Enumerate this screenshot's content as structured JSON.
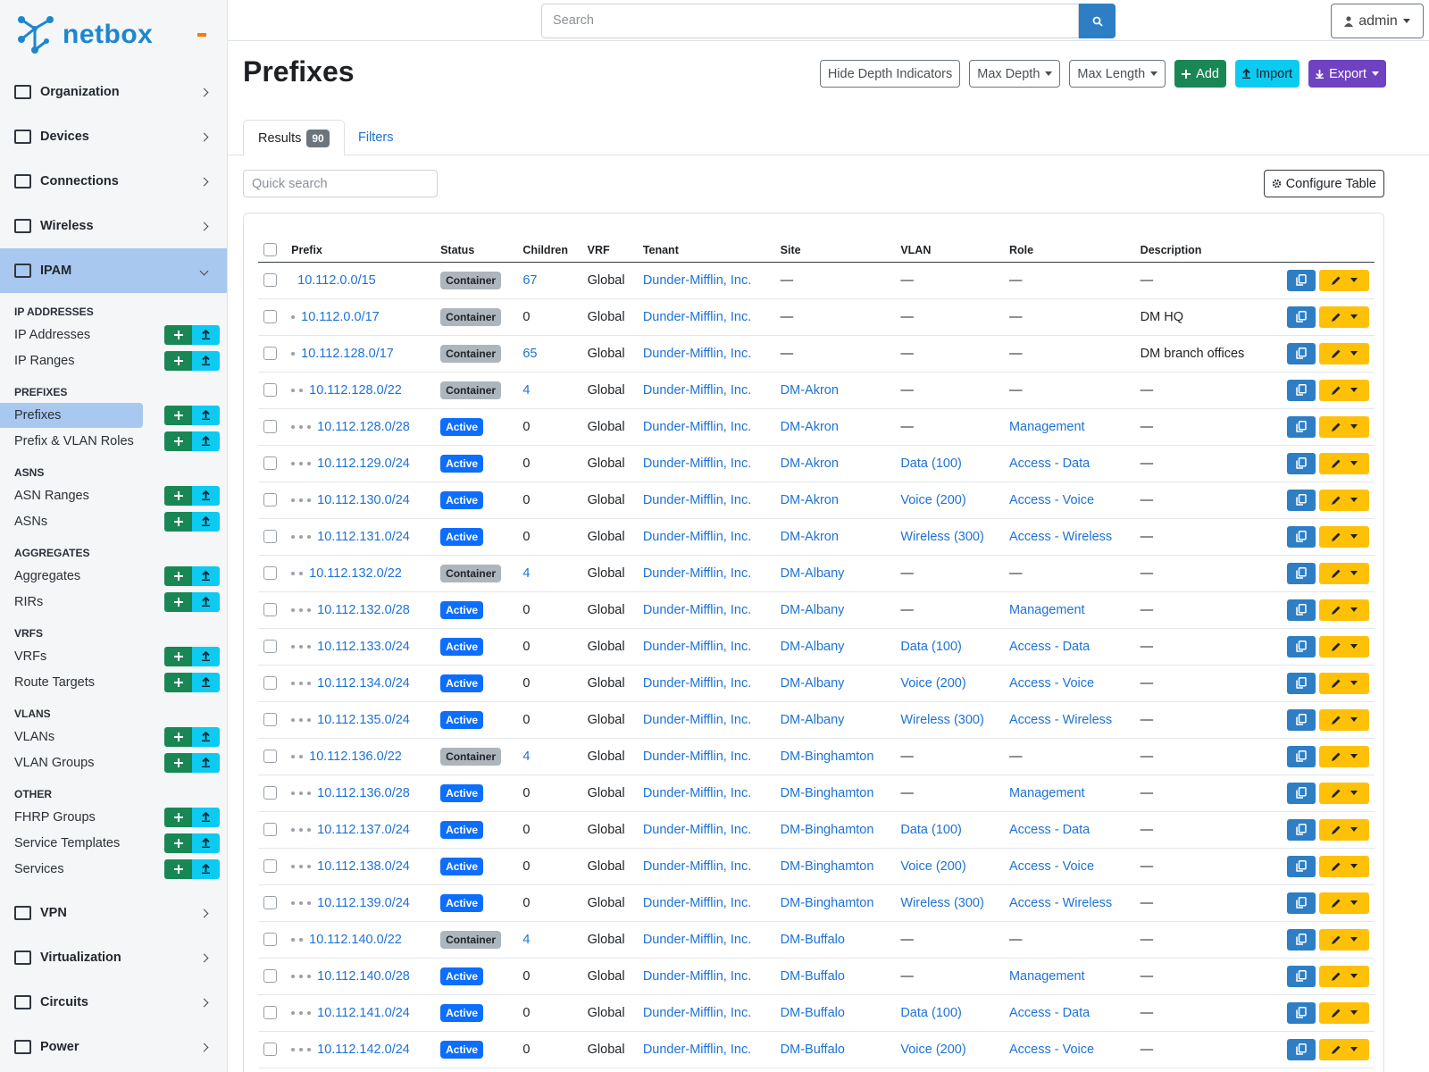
{
  "brand": "netbox",
  "search_placeholder": "Search",
  "user": "admin",
  "nav": {
    "top": [
      "Organization",
      "Devices",
      "Connections",
      "Wireless"
    ],
    "active": "IPAM",
    "groups": [
      {
        "title": "IP ADDRESSES",
        "items": [
          {
            "label": "IP Addresses"
          },
          {
            "label": "IP Ranges"
          }
        ]
      },
      {
        "title": "PREFIXES",
        "items": [
          {
            "label": "Prefixes",
            "selected": true
          },
          {
            "label": "Prefix & VLAN Roles"
          }
        ]
      },
      {
        "title": "ASNS",
        "items": [
          {
            "label": "ASN Ranges"
          },
          {
            "label": "ASNs"
          }
        ]
      },
      {
        "title": "AGGREGATES",
        "items": [
          {
            "label": "Aggregates"
          },
          {
            "label": "RIRs"
          }
        ]
      },
      {
        "title": "VRFS",
        "items": [
          {
            "label": "VRFs"
          },
          {
            "label": "Route Targets"
          }
        ]
      },
      {
        "title": "VLANS",
        "items": [
          {
            "label": "VLANs"
          },
          {
            "label": "VLAN Groups"
          }
        ]
      },
      {
        "title": "OTHER",
        "items": [
          {
            "label": "FHRP Groups"
          },
          {
            "label": "Service Templates"
          },
          {
            "label": "Services"
          }
        ]
      }
    ],
    "bottom": [
      "VPN",
      "Virtualization",
      "Circuits",
      "Power"
    ]
  },
  "page": {
    "title": "Prefixes",
    "actions": [
      "Hide Depth Indicators",
      "Max Depth",
      "Max Length",
      "Add",
      "Import",
      "Export"
    ],
    "tabs": {
      "results": "Results",
      "count": 90,
      "filters": "Filters"
    },
    "quick_search": "Quick search",
    "configure": "Configure Table"
  },
  "table": {
    "columns": [
      "Prefix",
      "Status",
      "Children",
      "VRF",
      "Tenant",
      "Site",
      "VLAN",
      "Role",
      "Description"
    ],
    "rows": [
      {
        "depth": 0,
        "cells": [
          "10.112.0.0/15",
          "Container",
          67,
          "Global",
          "Dunder-Mifflin, Inc.",
          "—",
          "—",
          "—",
          "—"
        ]
      },
      {
        "depth": 1,
        "cells": [
          "10.112.0.0/17",
          "Container",
          0,
          "Global",
          "Dunder-Mifflin, Inc.",
          "—",
          "—",
          "—",
          "DM HQ"
        ]
      },
      {
        "depth": 1,
        "cells": [
          "10.112.128.0/17",
          "Container",
          65,
          "Global",
          "Dunder-Mifflin, Inc.",
          "—",
          "—",
          "—",
          "DM branch offices"
        ]
      },
      {
        "depth": 2,
        "cells": [
          "10.112.128.0/22",
          "Container",
          4,
          "Global",
          "Dunder-Mifflin, Inc.",
          "DM-Akron",
          "—",
          "—",
          "—"
        ]
      },
      {
        "depth": 3,
        "cells": [
          "10.112.128.0/28",
          "Active",
          0,
          "Global",
          "Dunder-Mifflin, Inc.",
          "DM-Akron",
          "—",
          "Management",
          "—"
        ]
      },
      {
        "depth": 3,
        "cells": [
          "10.112.129.0/24",
          "Active",
          0,
          "Global",
          "Dunder-Mifflin, Inc.",
          "DM-Akron",
          "Data (100)",
          "Access - Data",
          "—"
        ]
      },
      {
        "depth": 3,
        "cells": [
          "10.112.130.0/24",
          "Active",
          0,
          "Global",
          "Dunder-Mifflin, Inc.",
          "DM-Akron",
          "Voice (200)",
          "Access - Voice",
          "—"
        ]
      },
      {
        "depth": 3,
        "cells": [
          "10.112.131.0/24",
          "Active",
          0,
          "Global",
          "Dunder-Mifflin, Inc.",
          "DM-Akron",
          "Wireless (300)",
          "Access - Wireless",
          "—"
        ]
      },
      {
        "depth": 2,
        "cells": [
          "10.112.132.0/22",
          "Container",
          4,
          "Global",
          "Dunder-Mifflin, Inc.",
          "DM-Albany",
          "—",
          "—",
          "—"
        ]
      },
      {
        "depth": 3,
        "cells": [
          "10.112.132.0/28",
          "Active",
          0,
          "Global",
          "Dunder-Mifflin, Inc.",
          "DM-Albany",
          "—",
          "Management",
          "—"
        ]
      },
      {
        "depth": 3,
        "cells": [
          "10.112.133.0/24",
          "Active",
          0,
          "Global",
          "Dunder-Mifflin, Inc.",
          "DM-Albany",
          "Data (100)",
          "Access - Data",
          "—"
        ]
      },
      {
        "depth": 3,
        "cells": [
          "10.112.134.0/24",
          "Active",
          0,
          "Global",
          "Dunder-Mifflin, Inc.",
          "DM-Albany",
          "Voice (200)",
          "Access - Voice",
          "—"
        ]
      },
      {
        "depth": 3,
        "cells": [
          "10.112.135.0/24",
          "Active",
          0,
          "Global",
          "Dunder-Mifflin, Inc.",
          "DM-Albany",
          "Wireless (300)",
          "Access - Wireless",
          "—"
        ]
      },
      {
        "depth": 2,
        "cells": [
          "10.112.136.0/22",
          "Container",
          4,
          "Global",
          "Dunder-Mifflin, Inc.",
          "DM-Binghamton",
          "—",
          "—",
          "—"
        ]
      },
      {
        "depth": 3,
        "cells": [
          "10.112.136.0/28",
          "Active",
          0,
          "Global",
          "Dunder-Mifflin, Inc.",
          "DM-Binghamton",
          "—",
          "Management",
          "—"
        ]
      },
      {
        "depth": 3,
        "cells": [
          "10.112.137.0/24",
          "Active",
          0,
          "Global",
          "Dunder-Mifflin, Inc.",
          "DM-Binghamton",
          "Data (100)",
          "Access - Data",
          "—"
        ]
      },
      {
        "depth": 3,
        "cells": [
          "10.112.138.0/24",
          "Active",
          0,
          "Global",
          "Dunder-Mifflin, Inc.",
          "DM-Binghamton",
          "Voice (200)",
          "Access - Voice",
          "—"
        ]
      },
      {
        "depth": 3,
        "cells": [
          "10.112.139.0/24",
          "Active",
          0,
          "Global",
          "Dunder-Mifflin, Inc.",
          "DM-Binghamton",
          "Wireless (300)",
          "Access - Wireless",
          "—"
        ]
      },
      {
        "depth": 2,
        "cells": [
          "10.112.140.0/22",
          "Container",
          4,
          "Global",
          "Dunder-Mifflin, Inc.",
          "DM-Buffalo",
          "—",
          "—",
          "—"
        ]
      },
      {
        "depth": 3,
        "cells": [
          "10.112.140.0/28",
          "Active",
          0,
          "Global",
          "Dunder-Mifflin, Inc.",
          "DM-Buffalo",
          "—",
          "Management",
          "—"
        ]
      },
      {
        "depth": 3,
        "cells": [
          "10.112.141.0/24",
          "Active",
          0,
          "Global",
          "Dunder-Mifflin, Inc.",
          "DM-Buffalo",
          "Data (100)",
          "Access - Data",
          "—"
        ]
      },
      {
        "depth": 3,
        "cells": [
          "10.112.142.0/24",
          "Active",
          0,
          "Global",
          "Dunder-Mifflin, Inc.",
          "DM-Buffalo",
          "Voice (200)",
          "Access - Voice",
          "—"
        ]
      }
    ]
  }
}
